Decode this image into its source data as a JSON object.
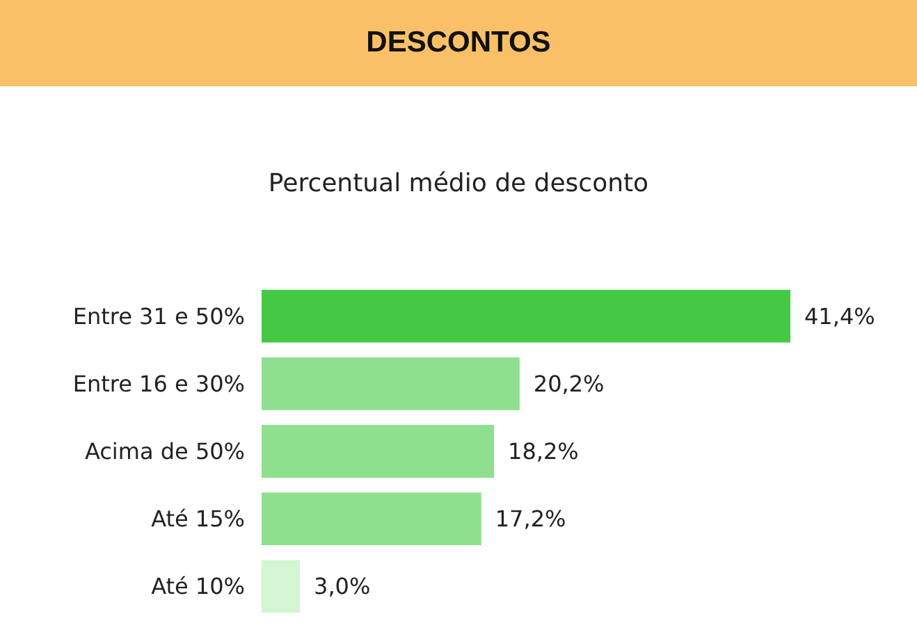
{
  "chart_data": {
    "type": "bar",
    "orientation": "horizontal",
    "title": "DESCONTOS",
    "subtitle": "Percentual médio de desconto",
    "categories": [
      "Entre 31 e 50%",
      "Entre 16 e 30%",
      "Acima de 50%",
      "Até 15%",
      "Até 10%"
    ],
    "values": [
      41.4,
      20.2,
      18.2,
      17.2,
      3.0
    ],
    "colors": [
      "#45c945",
      "#8ee08e",
      "#8ee08e",
      "#8ee08e",
      "#d3f5d3"
    ],
    "value_labels": [
      "41,4%",
      "20,2%",
      "18,2%",
      "17,2%",
      "3,0%"
    ]
  }
}
